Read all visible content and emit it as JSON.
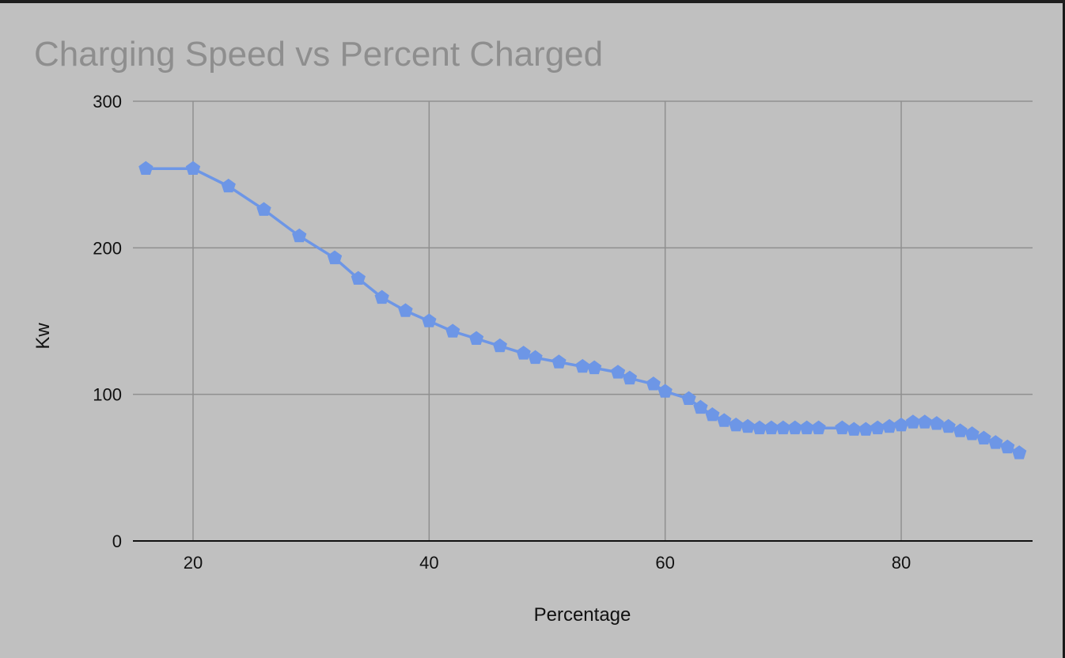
{
  "chart_data": {
    "type": "line",
    "title": "Charging Speed vs Percent Charged",
    "xlabel": "Percentage",
    "ylabel": "Kw",
    "xlim": [
      15.5,
      92
    ],
    "ylim": [
      0,
      300
    ],
    "xticks": [
      20,
      40,
      60,
      80
    ],
    "yticks": [
      0,
      100,
      200,
      300
    ],
    "grid": true,
    "legend": "none",
    "colors": {
      "series": "#6d96e6",
      "grid": "#8f8f8f",
      "axis": "#111111"
    },
    "series": [
      {
        "marker": "pentagon",
        "points": [
          [
            16,
            254
          ],
          [
            20,
            254
          ],
          [
            23,
            242
          ],
          [
            26,
            226
          ],
          [
            29,
            208
          ],
          [
            32,
            193
          ],
          [
            34,
            179
          ],
          [
            36,
            166
          ],
          [
            38,
            157
          ],
          [
            40,
            150
          ],
          [
            42,
            143
          ],
          [
            44,
            138
          ],
          [
            46,
            133
          ],
          [
            48,
            128
          ],
          [
            49,
            125
          ],
          [
            51,
            122
          ],
          [
            53,
            119
          ],
          [
            54,
            118
          ],
          [
            56,
            115
          ],
          [
            57,
            111
          ],
          [
            59,
            107
          ],
          [
            60,
            102
          ],
          [
            62,
            97
          ],
          [
            63,
            91
          ],
          [
            64,
            86
          ],
          [
            65,
            82
          ],
          [
            66,
            79
          ],
          [
            67,
            78
          ],
          [
            68,
            77
          ],
          [
            69,
            77
          ],
          [
            70,
            77
          ],
          [
            71,
            77
          ],
          [
            72,
            77
          ],
          [
            73,
            77
          ],
          [
            75,
            77
          ],
          [
            76,
            76
          ],
          [
            77,
            76
          ],
          [
            78,
            77
          ],
          [
            79,
            78
          ],
          [
            80,
            79
          ],
          [
            81,
            81
          ],
          [
            82,
            81
          ],
          [
            83,
            80
          ],
          [
            84,
            78
          ],
          [
            85,
            75
          ],
          [
            86,
            73
          ],
          [
            87,
            70
          ],
          [
            88,
            67
          ],
          [
            89,
            64
          ],
          [
            90,
            60
          ]
        ]
      }
    ]
  }
}
